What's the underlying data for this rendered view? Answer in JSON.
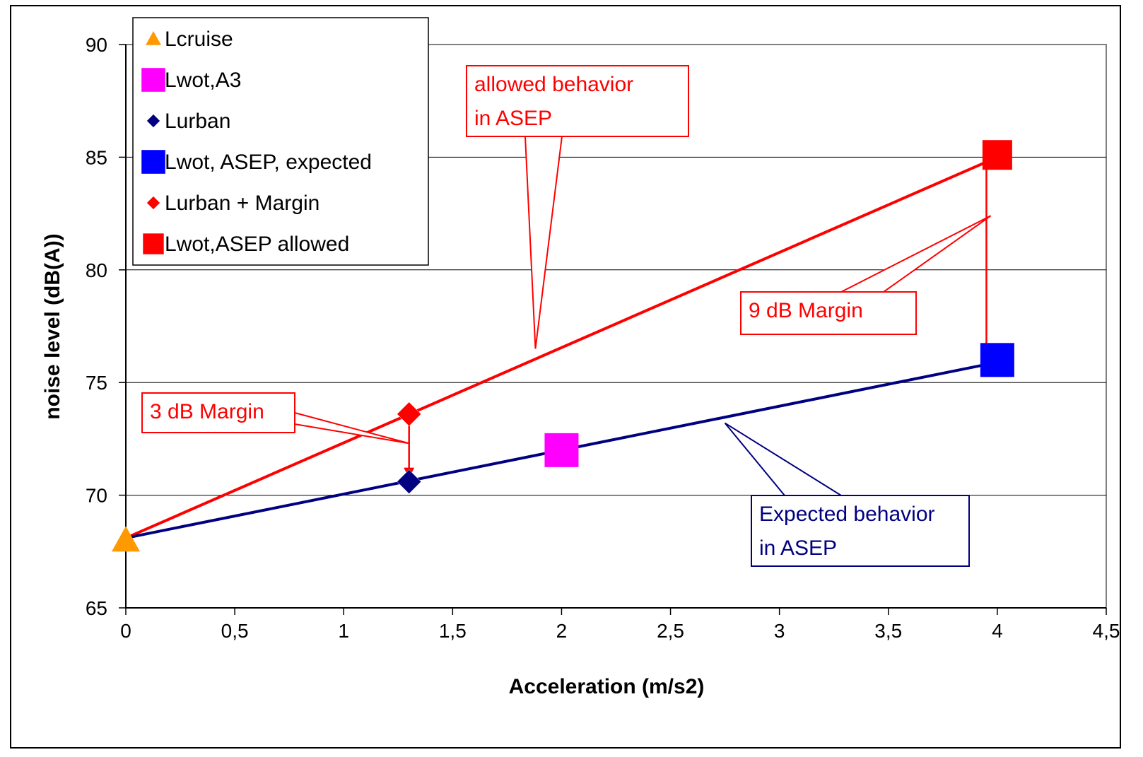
{
  "chart_data": {
    "type": "scatter",
    "title": "",
    "xlabel": "Acceleration (m/s2)",
    "ylabel": "noise level (dB(A))",
    "xlim": [
      0,
      4.5
    ],
    "ylim": [
      65,
      90
    ],
    "x_ticks": [
      "0",
      "0,5",
      "1",
      "1,5",
      "2",
      "2,5",
      "3",
      "3,5",
      "4",
      "4,5"
    ],
    "y_ticks": [
      "65",
      "70",
      "75",
      "80",
      "85",
      "90"
    ],
    "grid": "horizontal major gridlines",
    "legend_position": "top-left",
    "series": [
      {
        "name": "Lcruise",
        "marker": "triangle",
        "color": "#FF9900",
        "points": [
          {
            "x": 0,
            "y": 68
          }
        ]
      },
      {
        "name": "Lwot,A3",
        "marker": "square",
        "color": "#FF00FF",
        "points": [
          {
            "x": 2,
            "y": 72
          }
        ]
      },
      {
        "name": "Lurban",
        "marker": "diamond",
        "color": "#000080",
        "points": [
          {
            "x": 1.3,
            "y": 70.6
          }
        ]
      },
      {
        "name": "Lwot, ASEP, expected",
        "marker": "square",
        "color": "#0000FF",
        "points": [
          {
            "x": 4,
            "y": 76
          }
        ]
      },
      {
        "name": "Lurban + Margin",
        "marker": "diamond",
        "color": "#FF0000",
        "points": [
          {
            "x": 1.3,
            "y": 73.6
          }
        ]
      },
      {
        "name": "Lwot,ASEP allowed",
        "marker": "square-large",
        "color": "#FF0000",
        "points": [
          {
            "x": 4,
            "y": 85.1
          }
        ]
      }
    ],
    "lines": [
      {
        "role": "allowed",
        "color": "#FF0000",
        "points": [
          {
            "x": 0,
            "y": 68.1
          },
          {
            "x": 4,
            "y": 85
          }
        ]
      },
      {
        "role": "expected",
        "color": "#000080",
        "points": [
          {
            "x": 0,
            "y": 68.1
          },
          {
            "x": 4,
            "y": 75.9
          }
        ]
      }
    ],
    "arrows": [
      {
        "color": "#FF0000",
        "from": {
          "x": 1.3,
          "y": 73.1
        },
        "to": {
          "x": 1.3,
          "y": 70.8
        }
      },
      {
        "color": "#FF0000",
        "from": {
          "x": 3.95,
          "y": 84.6
        },
        "to": {
          "x": 3.95,
          "y": 76.3
        }
      }
    ],
    "annotations": [
      {
        "id": "allowed",
        "lines": [
          "allowed behavior",
          "in ASEP"
        ],
        "color": "#FF0000",
        "pointer": {
          "x": 1.88,
          "y": 76.5
        }
      },
      {
        "id": "margin9",
        "lines": [
          "9 dB Margin"
        ],
        "color": "#FF0000",
        "pointers": [
          {
            "x": 3.97,
            "y": 82.4
          },
          {
            "x": 3.97,
            "y": 82.4
          }
        ]
      },
      {
        "id": "margin3",
        "lines": [
          "3 dB Margin"
        ],
        "color": "#FF0000",
        "pointers": [
          {
            "x": 1.3,
            "y": 72.3
          },
          {
            "x": 1.3,
            "y": 72.3
          }
        ]
      },
      {
        "id": "expected",
        "lines": [
          "Expected behavior",
          "in ASEP"
        ],
        "color": "#000080",
        "pointers": [
          {
            "x": 2.75,
            "y": 73.2
          },
          {
            "x": 2.75,
            "y": 73.2
          }
        ]
      }
    ]
  }
}
